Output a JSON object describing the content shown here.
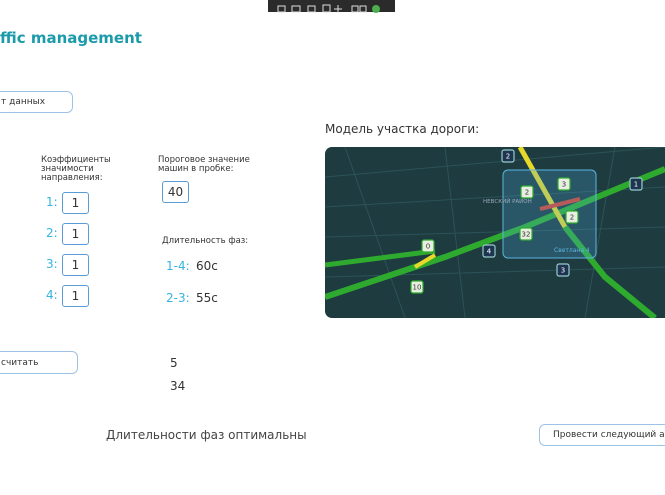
{
  "header": {
    "title": "ffic management"
  },
  "load_button": {
    "label": "т данных"
  },
  "coefficients": {
    "label": "Коэффициенты значимости направления:",
    "rows": [
      {
        "name": "1:",
        "value": "1"
      },
      {
        "name": "2:",
        "value": "1"
      },
      {
        "name": "3:",
        "value": "1"
      },
      {
        "name": "4:",
        "value": "1"
      }
    ]
  },
  "threshold": {
    "label": "Пороговое значение машин в пробке:",
    "value": "40"
  },
  "phases": {
    "label": "Длительность фаз:",
    "rows": [
      {
        "name": "1-4:",
        "value": "60с"
      },
      {
        "name": "2-3:",
        "value": "55с"
      }
    ]
  },
  "map": {
    "title": "Модель участка дороги:",
    "district": "НЕВСКИЙ РАЙОН",
    "place": "Светлана 4",
    "markers": [
      "2",
      "1",
      "3",
      "2",
      "2",
      "32",
      "0",
      "4",
      "10",
      "3"
    ]
  },
  "calc_button": {
    "label": "считать"
  },
  "results": [
    "5",
    "34"
  ],
  "status": "Длительности фаз оптимальны",
  "next_button": {
    "label": "Провести следующий ан"
  }
}
